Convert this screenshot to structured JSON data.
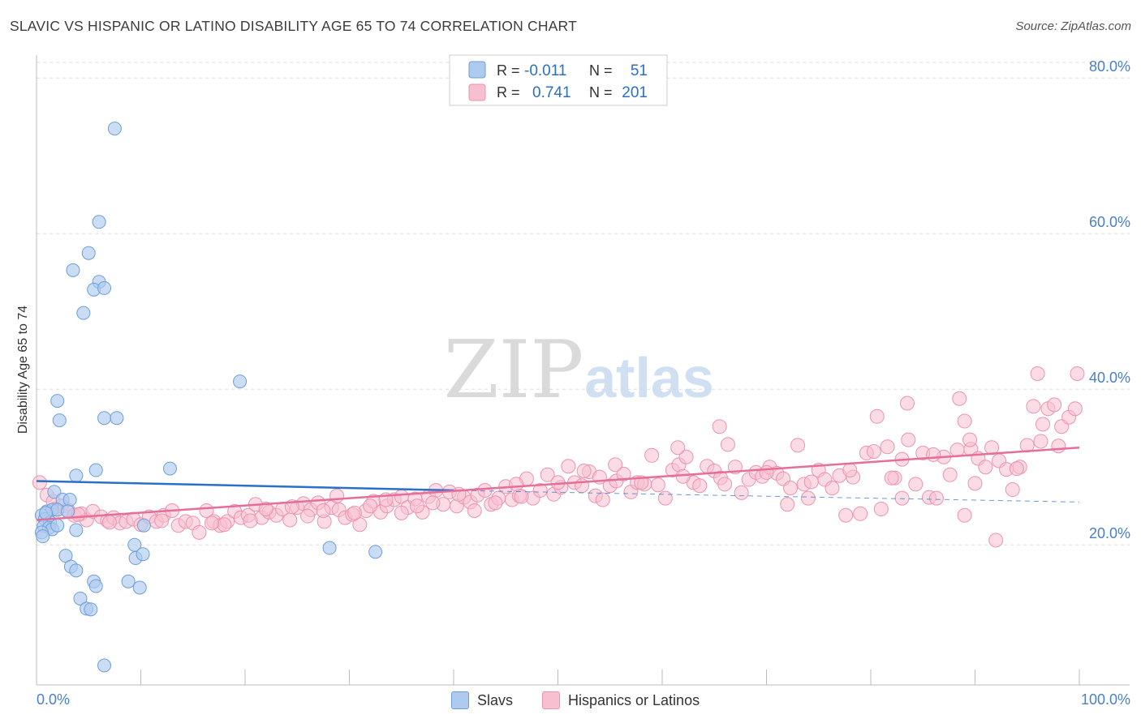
{
  "title": "SLAVIC VS HISPANIC OR LATINO DISABILITY AGE 65 TO 74 CORRELATION CHART",
  "source": "Source: ZipAtlas.com",
  "watermark": {
    "zip": "ZIP",
    "atlas": "atlas"
  },
  "colors": {
    "slavs_fill": "#aecbef",
    "slavs_stroke": "#6e9ed8",
    "slavs_line": "#2a6fca",
    "hisp_fill": "#f7bfd0",
    "hisp_stroke": "#ec93b1",
    "hisp_line": "#e56f98",
    "axis_label": "#4a7fc9",
    "grid": "#dedede"
  },
  "legend_top": {
    "rows": [
      {
        "r_label": "R =",
        "r_value": "-0.011",
        "n_label": "N =",
        "n_value": "51"
      },
      {
        "r_label": "R =",
        "r_value": "0.741",
        "n_label": "N =",
        "n_value": "201"
      }
    ]
  },
  "legend_bottom": {
    "slavs": "Slavs",
    "hispanics": "Hispanics or Latinos"
  },
  "chart_data": {
    "type": "scatter",
    "title": "SLAVIC VS HISPANIC OR LATINO DISABILITY AGE 65 TO 74 CORRELATION CHART",
    "ylabel": "Disability Age 65 to 74",
    "xlabel": "",
    "x_tick_labels": [
      "0.0%",
      "100.0%"
    ],
    "y_tick_labels": [
      "20.0%",
      "40.0%",
      "60.0%",
      "80.0%"
    ],
    "y_ticks": [
      20,
      40,
      60,
      80
    ],
    "xlim": [
      0,
      100
    ],
    "ylim": [
      2,
      82
    ],
    "grid": true,
    "series": [
      {
        "name": "Slavs",
        "r": -0.011,
        "n": 51,
        "trend": {
          "x": [
            0,
            40
          ],
          "y": [
            28.2,
            27.0
          ]
        },
        "trend_dashed": {
          "x": [
            40,
            100
          ],
          "y": [
            27.0,
            25.5
          ]
        },
        "points": [
          [
            7.5,
            73.5
          ],
          [
            6.0,
            61.5
          ],
          [
            5.0,
            57.5
          ],
          [
            3.5,
            55.3
          ],
          [
            6.0,
            53.8
          ],
          [
            5.5,
            52.8
          ],
          [
            6.5,
            53.0
          ],
          [
            4.5,
            49.8
          ],
          [
            19.5,
            41.0
          ],
          [
            2.0,
            38.5
          ],
          [
            2.2,
            36.0
          ],
          [
            6.5,
            36.3
          ],
          [
            7.7,
            36.3
          ],
          [
            12.8,
            29.8
          ],
          [
            5.7,
            29.6
          ],
          [
            3.8,
            28.9
          ],
          [
            1.7,
            26.8
          ],
          [
            2.5,
            25.8
          ],
          [
            3.2,
            25.8
          ],
          [
            1.0,
            24.3
          ],
          [
            1.5,
            24.5
          ],
          [
            2.0,
            24.5
          ],
          [
            3.0,
            24.3
          ],
          [
            0.5,
            23.8
          ],
          [
            0.8,
            23.3
          ],
          [
            1.3,
            22.9
          ],
          [
            0.7,
            22.4
          ],
          [
            1.2,
            22.2
          ],
          [
            1.5,
            22.0
          ],
          [
            2.0,
            22.5
          ],
          [
            0.5,
            21.6
          ],
          [
            0.6,
            21.1
          ],
          [
            3.8,
            21.9
          ],
          [
            10.3,
            22.5
          ],
          [
            9.4,
            20.0
          ],
          [
            9.5,
            18.3
          ],
          [
            10.2,
            18.8
          ],
          [
            28.1,
            19.6
          ],
          [
            32.5,
            19.1
          ],
          [
            2.8,
            18.6
          ],
          [
            3.3,
            17.2
          ],
          [
            3.8,
            16.7
          ],
          [
            5.5,
            15.3
          ],
          [
            5.7,
            14.7
          ],
          [
            8.8,
            15.3
          ],
          [
            9.9,
            14.5
          ],
          [
            4.2,
            13.1
          ],
          [
            4.8,
            11.8
          ],
          [
            5.2,
            11.7
          ],
          [
            6.5,
            4.5
          ],
          [
            0.9,
            24.1
          ]
        ]
      },
      {
        "name": "Hispanics or Latinos",
        "r": 0.741,
        "n": 201,
        "trend": {
          "x": [
            0,
            100
          ],
          "y": [
            23.2,
            32.5
          ]
        },
        "points": [
          [
            0.3,
            28.0
          ],
          [
            1.0,
            26.4
          ],
          [
            1.6,
            25.6
          ],
          [
            2.4,
            25.0
          ],
          [
            3.0,
            24.5
          ],
          [
            3.6,
            23.8
          ],
          [
            4.3,
            24.0
          ],
          [
            4.8,
            23.2
          ],
          [
            5.4,
            24.3
          ],
          [
            6.2,
            23.6
          ],
          [
            6.8,
            23.1
          ],
          [
            7.4,
            23.5
          ],
          [
            8.0,
            22.8
          ],
          [
            8.6,
            23.0
          ],
          [
            9.3,
            23.3
          ],
          [
            10.0,
            22.6
          ],
          [
            10.8,
            23.6
          ],
          [
            11.5,
            23.0
          ],
          [
            12.2,
            23.8
          ],
          [
            13.0,
            24.4
          ],
          [
            13.6,
            22.5
          ],
          [
            14.3,
            23.0
          ],
          [
            15.0,
            22.8
          ],
          [
            15.6,
            21.6
          ],
          [
            16.3,
            24.4
          ],
          [
            17.0,
            23.0
          ],
          [
            17.6,
            22.5
          ],
          [
            18.3,
            23.0
          ],
          [
            19.0,
            24.3
          ],
          [
            19.6,
            23.5
          ],
          [
            20.3,
            23.8
          ],
          [
            21.0,
            25.2
          ],
          [
            21.6,
            23.5
          ],
          [
            22.3,
            24.2
          ],
          [
            23.0,
            23.8
          ],
          [
            23.6,
            24.6
          ],
          [
            24.3,
            23.2
          ],
          [
            25.0,
            24.8
          ],
          [
            25.6,
            25.3
          ],
          [
            26.3,
            24.5
          ],
          [
            27.0,
            25.4
          ],
          [
            27.6,
            23.0
          ],
          [
            28.3,
            24.8
          ],
          [
            29.0,
            24.5
          ],
          [
            29.6,
            23.5
          ],
          [
            30.3,
            23.9
          ],
          [
            31.0,
            22.6
          ],
          [
            31.6,
            24.4
          ],
          [
            32.3,
            25.6
          ],
          [
            33.0,
            24.2
          ],
          [
            33.6,
            25.0
          ],
          [
            34.3,
            25.8
          ],
          [
            35.0,
            26.2
          ],
          [
            35.6,
            24.8
          ],
          [
            36.3,
            25.9
          ],
          [
            37.0,
            24.2
          ],
          [
            37.6,
            26.2
          ],
          [
            38.3,
            27.0
          ],
          [
            39.0,
            25.2
          ],
          [
            39.6,
            26.8
          ],
          [
            40.3,
            25.0
          ],
          [
            41.0,
            26.1
          ],
          [
            41.6,
            25.5
          ],
          [
            42.3,
            26.4
          ],
          [
            43.0,
            27.0
          ],
          [
            43.6,
            25.2
          ],
          [
            44.3,
            26.0
          ],
          [
            45.0,
            27.5
          ],
          [
            45.6,
            25.8
          ],
          [
            46.3,
            26.3
          ],
          [
            47.0,
            28.5
          ],
          [
            47.6,
            26.0
          ],
          [
            48.3,
            27.0
          ],
          [
            49.0,
            29.0
          ],
          [
            49.6,
            26.5
          ],
          [
            50.3,
            27.4
          ],
          [
            51.0,
            30.1
          ],
          [
            51.6,
            28.0
          ],
          [
            52.3,
            27.6
          ],
          [
            53.0,
            29.4
          ],
          [
            53.6,
            26.3
          ],
          [
            54.3,
            25.8
          ],
          [
            55.0,
            27.6
          ],
          [
            55.6,
            28.2
          ],
          [
            56.3,
            29.1
          ],
          [
            57.0,
            26.8
          ],
          [
            57.6,
            28.0
          ],
          [
            58.3,
            27.8
          ],
          [
            59.0,
            31.5
          ],
          [
            59.6,
            27.7
          ],
          [
            60.3,
            26.0
          ],
          [
            61.0,
            29.6
          ],
          [
            61.6,
            30.3
          ],
          [
            62.3,
            31.3
          ],
          [
            63.0,
            28.0
          ],
          [
            63.6,
            27.6
          ],
          [
            64.3,
            30.1
          ],
          [
            65.0,
            29.5
          ],
          [
            65.6,
            28.6
          ],
          [
            66.3,
            32.9
          ],
          [
            67.0,
            30.0
          ],
          [
            67.6,
            26.7
          ],
          [
            68.3,
            28.4
          ],
          [
            69.0,
            29.3
          ],
          [
            69.6,
            28.8
          ],
          [
            70.3,
            30.0
          ],
          [
            71.0,
            29.2
          ],
          [
            71.6,
            28.5
          ],
          [
            72.3,
            27.3
          ],
          [
            73.0,
            32.8
          ],
          [
            73.6,
            27.8
          ],
          [
            74.3,
            28.1
          ],
          [
            75.0,
            29.6
          ],
          [
            75.6,
            28.4
          ],
          [
            76.3,
            27.3
          ],
          [
            77.0,
            28.9
          ],
          [
            77.6,
            23.8
          ],
          [
            78.3,
            28.7
          ],
          [
            79.0,
            24.0
          ],
          [
            79.6,
            31.8
          ],
          [
            80.3,
            32.0
          ],
          [
            81.0,
            24.6
          ],
          [
            81.6,
            32.6
          ],
          [
            82.3,
            28.6
          ],
          [
            83.0,
            31.0
          ],
          [
            83.6,
            33.5
          ],
          [
            84.3,
            27.8
          ],
          [
            85.0,
            31.8
          ],
          [
            85.6,
            26.1
          ],
          [
            86.3,
            26.0
          ],
          [
            87.0,
            31.3
          ],
          [
            87.6,
            29.0
          ],
          [
            88.3,
            32.2
          ],
          [
            89.0,
            23.8
          ],
          [
            89.6,
            32.3
          ],
          [
            90.3,
            31.1
          ],
          [
            91.0,
            30.0
          ],
          [
            91.6,
            32.5
          ],
          [
            92.3,
            30.8
          ],
          [
            93.0,
            29.7
          ],
          [
            93.6,
            27.1
          ],
          [
            94.3,
            30.0
          ],
          [
            95.0,
            32.8
          ],
          [
            95.6,
            37.8
          ],
          [
            96.3,
            33.3
          ],
          [
            97.0,
            37.5
          ],
          [
            97.6,
            38.0
          ],
          [
            98.3,
            35.2
          ],
          [
            99.0,
            36.4
          ],
          [
            99.6,
            37.5
          ],
          [
            1.8,
            24.6
          ],
          [
            4.0,
            23.9
          ],
          [
            7.0,
            22.9
          ],
          [
            12.0,
            23.1
          ],
          [
            18.0,
            22.6
          ],
          [
            22.0,
            24.6
          ],
          [
            26.0,
            23.7
          ],
          [
            28.8,
            26.3
          ],
          [
            32.0,
            25.0
          ],
          [
            35.0,
            24.1
          ],
          [
            38.0,
            25.4
          ],
          [
            42.0,
            24.4
          ],
          [
            46.0,
            27.8
          ],
          [
            50.0,
            28.0
          ],
          [
            54.0,
            28.7
          ],
          [
            58.0,
            28.0
          ],
          [
            62.0,
            28.8
          ],
          [
            66.0,
            27.8
          ],
          [
            70.0,
            29.3
          ],
          [
            74.0,
            26.0
          ],
          [
            78.0,
            29.6
          ],
          [
            82.0,
            28.6
          ],
          [
            86.0,
            31.6
          ],
          [
            90.0,
            27.9
          ],
          [
            94.0,
            29.8
          ],
          [
            98.0,
            32.7
          ],
          [
            99.8,
            42.0
          ],
          [
            96.0,
            42.0
          ],
          [
            88.5,
            38.8
          ],
          [
            83.5,
            38.2
          ],
          [
            80.6,
            36.5
          ],
          [
            89.0,
            35.9
          ],
          [
            89.5,
            33.5
          ],
          [
            96.5,
            35.5
          ],
          [
            83.0,
            26.0
          ],
          [
            72.0,
            25.2
          ],
          [
            65.5,
            35.2
          ],
          [
            61.5,
            32.5
          ],
          [
            55.5,
            30.3
          ],
          [
            52.5,
            29.5
          ],
          [
            46.5,
            26.2
          ],
          [
            44.0,
            25.4
          ],
          [
            40.5,
            26.5
          ],
          [
            36.5,
            25.0
          ],
          [
            33.5,
            25.8
          ],
          [
            30.5,
            24.1
          ],
          [
            27.5,
            24.4
          ],
          [
            24.5,
            24.9
          ],
          [
            20.5,
            23.1
          ],
          [
            16.8,
            22.8
          ],
          [
            92.0,
            20.6
          ]
        ]
      }
    ]
  }
}
